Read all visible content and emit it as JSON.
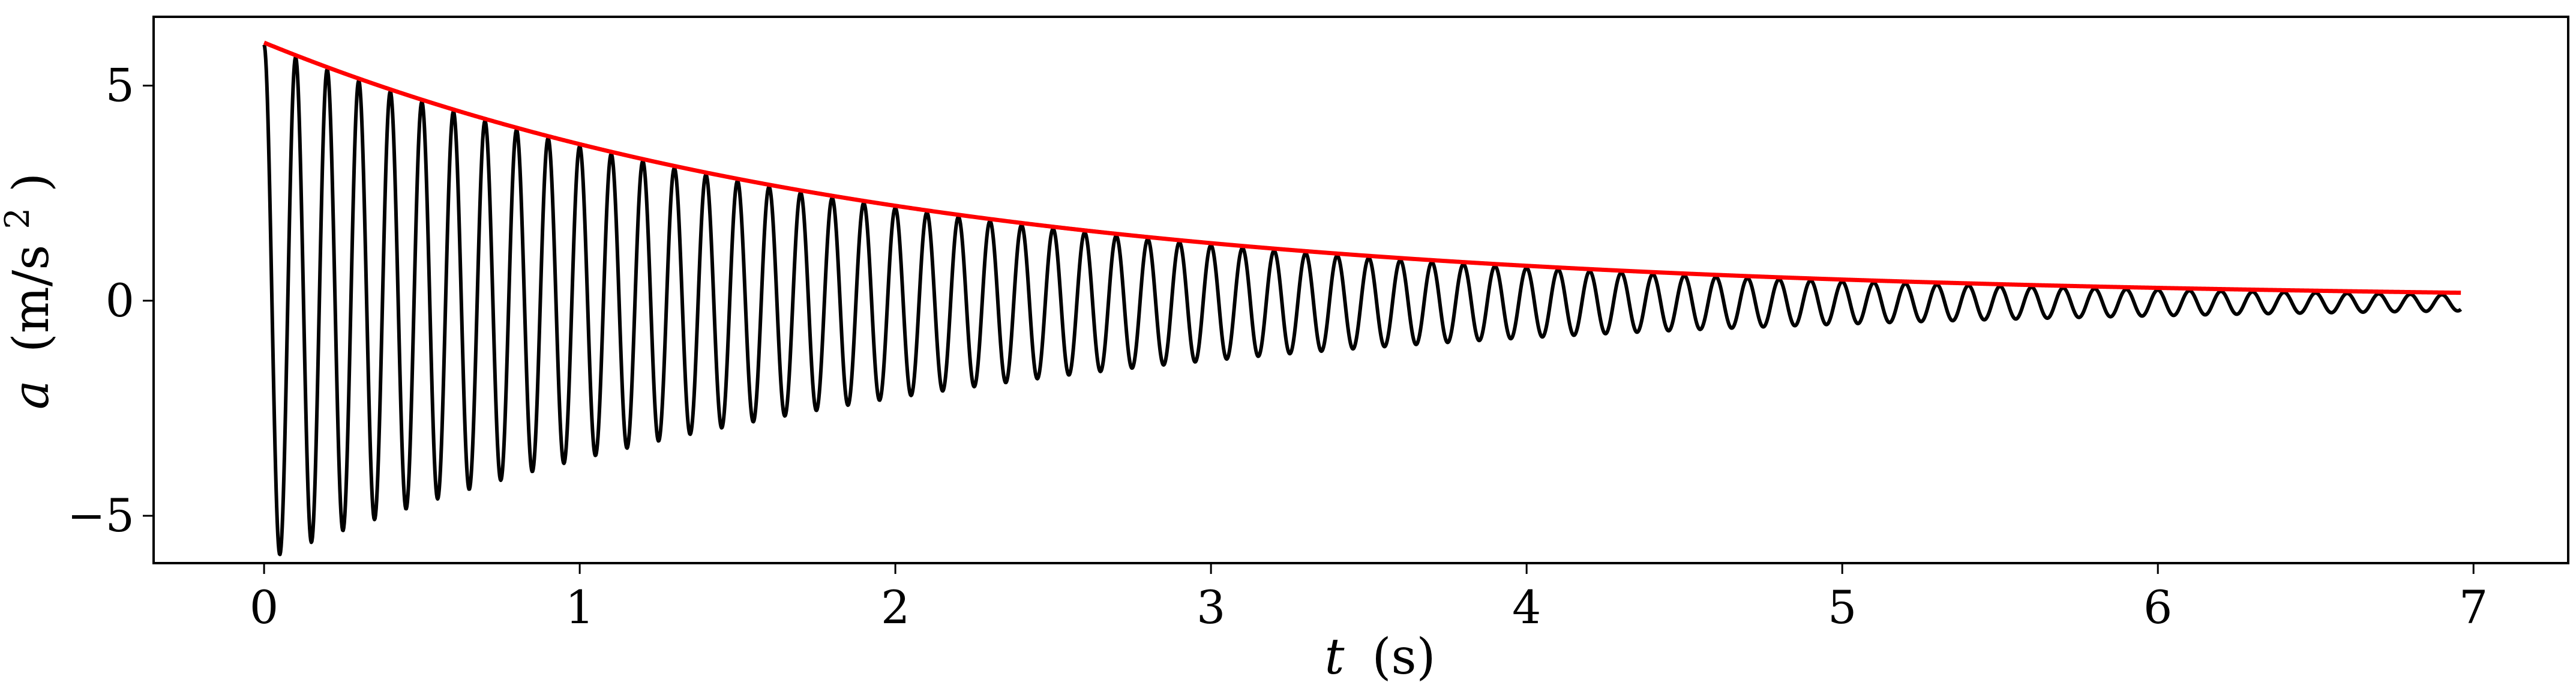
{
  "chart_data": {
    "type": "line",
    "xlabel": {
      "var": "t",
      "unit": "(s)"
    },
    "ylabel": {
      "var": "a",
      "unit": "(m/s",
      "sup": "2",
      "close": ")"
    },
    "xlim": [
      -0.35,
      7.3
    ],
    "ylim": [
      -6.1,
      6.6
    ],
    "xticks": [
      0,
      1,
      2,
      3,
      4,
      5,
      6,
      7
    ],
    "xtick_labels": [
      "0",
      "1",
      "2",
      "3",
      "4",
      "5",
      "6",
      "7"
    ],
    "yticks": [
      -5,
      0,
      5
    ],
    "ytick_labels": [
      "−5",
      "0",
      "5"
    ],
    "grid": false,
    "legend": "none",
    "series": [
      {
        "role": "acceleration",
        "color": "#000000",
        "shape": "damped cosine",
        "amplitude0": 6.0,
        "decay_rate": 0.5,
        "frequency_hz": 10.0,
        "t_range": [
          0,
          6.96
        ],
        "offset": -0.05
      },
      {
        "role": "envelope",
        "color": "#ff0000",
        "shape": "exponential decay",
        "amplitude0": 6.0,
        "decay_rate": 0.5,
        "t_range": [
          0,
          6.96
        ]
      }
    ]
  }
}
